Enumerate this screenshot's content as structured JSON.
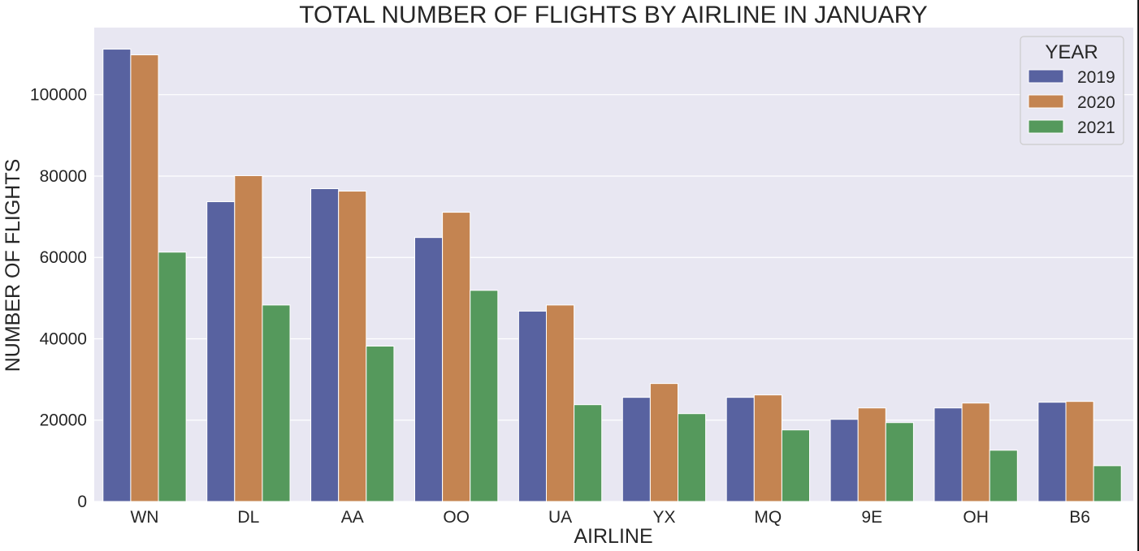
{
  "chart_data": {
    "type": "bar",
    "title": "TOTAL NUMBER OF FLIGHTS BY AIRLINE IN JANUARY",
    "xlabel": "AIRLINE",
    "ylabel": "NUMBER OF FLIGHTS",
    "categories": [
      "WN",
      "DL",
      "AA",
      "OO",
      "UA",
      "YX",
      "MQ",
      "9E",
      "OH",
      "B6"
    ],
    "series": [
      {
        "name": "2019",
        "color": "#5862a0",
        "values": [
          111200,
          73700,
          76900,
          64900,
          46800,
          25600,
          25600,
          20200,
          23000,
          24400
        ]
      },
      {
        "name": "2020",
        "color": "#c48451",
        "values": [
          109800,
          80100,
          76300,
          71100,
          48300,
          29000,
          26200,
          23000,
          24200,
          24600
        ]
      },
      {
        "name": "2021",
        "color": "#55995c",
        "values": [
          61300,
          48300,
          38200,
          51900,
          23800,
          21600,
          17600,
          19400,
          12600,
          8800
        ]
      }
    ],
    "ylim": [
      0,
      116500
    ],
    "yticks": [
      0,
      20000,
      40000,
      60000,
      80000,
      100000
    ],
    "grid": true,
    "legend": {
      "title": "YEAR",
      "placement": "top-right"
    },
    "background": "#e8e7f2",
    "grid_color": "#ffffff"
  }
}
